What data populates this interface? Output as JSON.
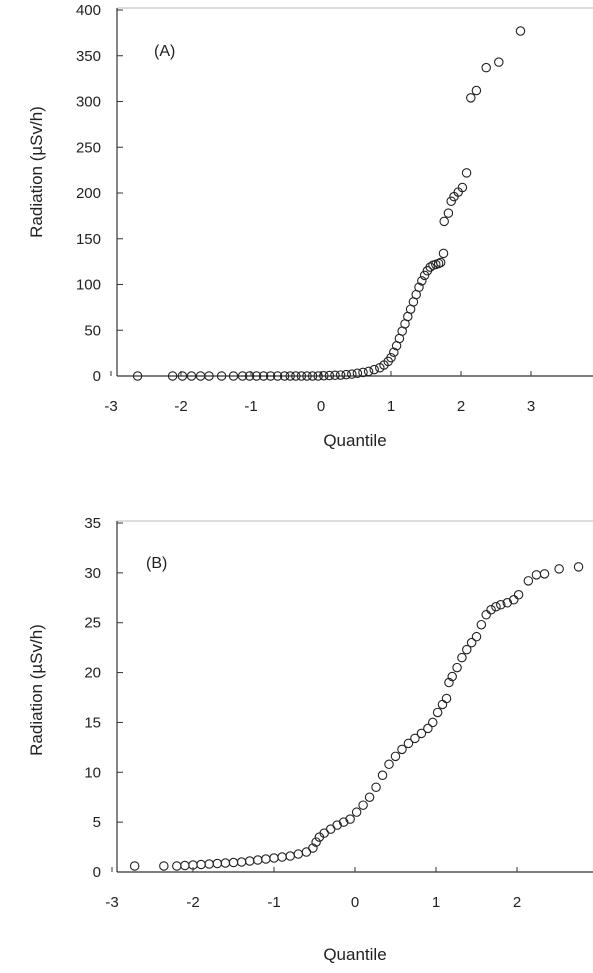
{
  "chart_data": [
    {
      "type": "scatter",
      "panel_label": "(A)",
      "xlabel": "Quantile",
      "ylabel": "Radiation (µSv/h)",
      "xlim": [
        -3,
        4
      ],
      "ylim": [
        0,
        400
      ],
      "xticks": [
        -3,
        -2,
        -1,
        0,
        1,
        2,
        3
      ],
      "yticks": [
        0,
        50,
        100,
        150,
        200,
        250,
        300,
        350,
        400
      ],
      "grid": false,
      "series": [
        {
          "points": [
            [
              -2.62,
              0
            ],
            [
              -2.12,
              0
            ],
            [
              -1.98,
              0
            ],
            [
              -1.85,
              0
            ],
            [
              -1.72,
              0
            ],
            [
              -1.6,
              0
            ],
            [
              -1.42,
              0
            ],
            [
              -1.25,
              0
            ],
            [
              -1.12,
              0
            ],
            [
              -1.02,
              0
            ],
            [
              -0.92,
              0
            ],
            [
              -0.82,
              0
            ],
            [
              -0.72,
              0
            ],
            [
              -0.62,
              0
            ],
            [
              -0.52,
              0
            ],
            [
              -0.44,
              0
            ],
            [
              -0.36,
              0
            ],
            [
              -0.28,
              0
            ],
            [
              -0.2,
              0
            ],
            [
              -0.12,
              0
            ],
            [
              -0.04,
              0
            ],
            [
              0.04,
              0.3
            ],
            [
              0.12,
              0.5
            ],
            [
              0.2,
              0.8
            ],
            [
              0.28,
              1
            ],
            [
              0.36,
              1.5
            ],
            [
              0.44,
              2
            ],
            [
              0.52,
              3
            ],
            [
              0.6,
              4
            ],
            [
              0.68,
              5
            ],
            [
              0.76,
              7
            ],
            [
              0.84,
              9
            ],
            [
              0.9,
              12
            ],
            [
              0.96,
              16
            ],
            [
              1.0,
              20
            ],
            [
              1.04,
              26
            ],
            [
              1.08,
              33
            ],
            [
              1.12,
              41
            ],
            [
              1.16,
              49
            ],
            [
              1.2,
              57
            ],
            [
              1.24,
              65
            ],
            [
              1.28,
              73
            ],
            [
              1.32,
              81
            ],
            [
              1.36,
              89
            ],
            [
              1.4,
              97
            ],
            [
              1.44,
              104
            ],
            [
              1.48,
              110
            ],
            [
              1.52,
              115
            ],
            [
              1.56,
              119
            ],
            [
              1.6,
              121
            ],
            [
              1.64,
              122
            ],
            [
              1.68,
              123
            ],
            [
              1.71,
              124
            ],
            [
              1.75,
              134
            ],
            [
              1.76,
              169
            ],
            [
              1.82,
              178
            ],
            [
              1.86,
              191
            ],
            [
              1.9,
              196
            ],
            [
              1.96,
              201
            ],
            [
              2.02,
              206
            ],
            [
              2.08,
              222
            ],
            [
              2.14,
              304
            ],
            [
              2.22,
              312
            ],
            [
              2.36,
              337
            ],
            [
              2.54,
              343
            ],
            [
              2.85,
              377
            ]
          ]
        }
      ]
    },
    {
      "type": "scatter",
      "panel_label": "(B)",
      "xlabel": "Quantile",
      "ylabel": "Radiation (µSv/h)",
      "xlim": [
        -3,
        3
      ],
      "ylim": [
        0,
        35
      ],
      "xticks": [
        -3,
        -2,
        -1,
        0,
        1,
        2
      ],
      "yticks": [
        0,
        5,
        10,
        15,
        20,
        25,
        30,
        35
      ],
      "grid": false,
      "series": [
        {
          "points": [
            [
              -2.72,
              0.6
            ],
            [
              -2.36,
              0.6
            ],
            [
              -2.2,
              0.6
            ],
            [
              -2.1,
              0.65
            ],
            [
              -2.0,
              0.7
            ],
            [
              -1.9,
              0.75
            ],
            [
              -1.8,
              0.8
            ],
            [
              -1.7,
              0.85
            ],
            [
              -1.6,
              0.9
            ],
            [
              -1.5,
              0.95
            ],
            [
              -1.4,
              1.0
            ],
            [
              -1.3,
              1.1
            ],
            [
              -1.2,
              1.2
            ],
            [
              -1.1,
              1.3
            ],
            [
              -1.0,
              1.4
            ],
            [
              -0.9,
              1.5
            ],
            [
              -0.8,
              1.6
            ],
            [
              -0.7,
              1.8
            ],
            [
              -0.6,
              2.0
            ],
            [
              -0.52,
              2.4
            ],
            [
              -0.48,
              3.0
            ],
            [
              -0.44,
              3.5
            ],
            [
              -0.38,
              3.9
            ],
            [
              -0.3,
              4.3
            ],
            [
              -0.22,
              4.7
            ],
            [
              -0.14,
              5.0
            ],
            [
              -0.06,
              5.3
            ],
            [
              0.02,
              6.0
            ],
            [
              0.1,
              6.7
            ],
            [
              0.18,
              7.5
            ],
            [
              0.26,
              8.5
            ],
            [
              0.34,
              9.7
            ],
            [
              0.42,
              10.8
            ],
            [
              0.5,
              11.6
            ],
            [
              0.58,
              12.3
            ],
            [
              0.66,
              12.9
            ],
            [
              0.74,
              13.4
            ],
            [
              0.82,
              13.9
            ],
            [
              0.9,
              14.4
            ],
            [
              0.96,
              15.0
            ],
            [
              1.02,
              16.0
            ],
            [
              1.08,
              16.8
            ],
            [
              1.13,
              17.4
            ],
            [
              1.16,
              19.0
            ],
            [
              1.2,
              19.6
            ],
            [
              1.26,
              20.5
            ],
            [
              1.32,
              21.5
            ],
            [
              1.38,
              22.3
            ],
            [
              1.44,
              23.0
            ],
            [
              1.5,
              23.6
            ],
            [
              1.56,
              24.8
            ],
            [
              1.62,
              25.8
            ],
            [
              1.68,
              26.3
            ],
            [
              1.74,
              26.6
            ],
            [
              1.8,
              26.8
            ],
            [
              1.88,
              27.0
            ],
            [
              1.96,
              27.3
            ],
            [
              2.02,
              27.8
            ],
            [
              2.14,
              29.2
            ],
            [
              2.24,
              29.8
            ],
            [
              2.34,
              29.9
            ],
            [
              2.52,
              30.4
            ],
            [
              2.76,
              30.6
            ]
          ]
        }
      ]
    }
  ]
}
